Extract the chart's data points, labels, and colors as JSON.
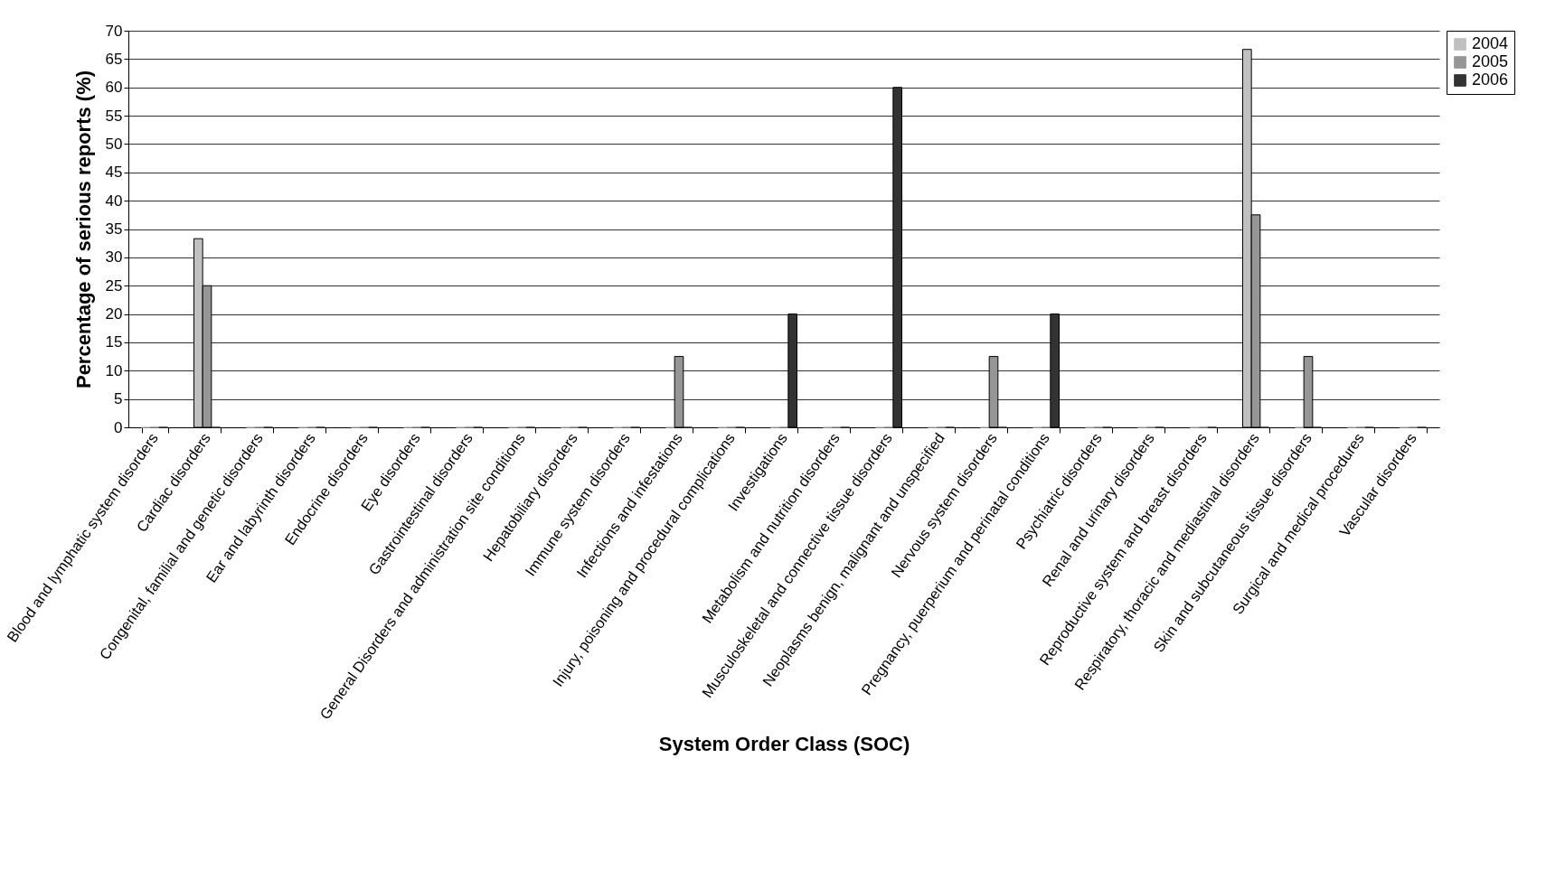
{
  "chart_data": {
    "type": "bar",
    "xlabel": "System Order Class (SOC)",
    "ylabel": "Percentage of serious reports (%)",
    "categories": [
      "Blood and lymphatic system disorders",
      "Cardiac disorders",
      "Congenital, familial and genetic disorders",
      "Ear and labyrinth disorders",
      "Endocrine disorders",
      "Eye disorders",
      "Gastrointestinal disorders",
      "General Disorders and administration site conditions",
      "Hepatobiliary disorders",
      "Immune system disorders",
      "Infections and infestations",
      "Injury, poisoning and procedural complications",
      "Investigations",
      "Metabolism and nutrition disorders",
      "Musculoskeletal and connective tissue disorders",
      "Neoplasms benign, malignant and unspecified",
      "Nervous system disorders",
      "Pregnancy, puerperium and perinatal conditions",
      "Psychiatric disorders",
      "Renal and urinary disorders",
      "Reproductive system and breast disorders",
      "Respiratory, thoracic and mediastinal disorders",
      "Skin and subcutaneous tissue disorders",
      "Surgical and medical procedures",
      "Vascular disorders"
    ],
    "series": [
      {
        "name": "2004",
        "color": "#c0c0c0",
        "values": [
          0,
          33.3,
          0,
          0,
          0,
          0,
          0,
          0,
          0,
          0,
          0,
          0,
          0,
          0,
          0,
          0,
          0,
          0,
          0,
          0,
          0,
          66.7,
          0,
          0,
          0
        ]
      },
      {
        "name": "2005",
        "color": "#969696",
        "values": [
          0,
          25,
          0,
          0,
          0,
          0,
          0,
          0,
          0,
          0,
          12.5,
          0,
          0,
          0,
          0,
          0,
          12.5,
          0,
          0,
          0,
          0,
          37.5,
          12.5,
          0,
          0
        ]
      },
      {
        "name": "2006",
        "color": "#333333",
        "values": [
          0,
          0,
          0,
          0,
          0,
          0,
          0,
          0,
          0,
          0,
          0,
          0,
          20,
          0,
          60,
          0,
          0,
          20,
          0,
          0,
          0,
          0,
          0,
          0,
          0
        ]
      }
    ],
    "ylim": [
      0,
      70
    ],
    "yticks": [
      0,
      5,
      10,
      15,
      20,
      25,
      30,
      35,
      40,
      45,
      50,
      55,
      60,
      65,
      70
    ],
    "grid": "y",
    "legend": "top right"
  }
}
